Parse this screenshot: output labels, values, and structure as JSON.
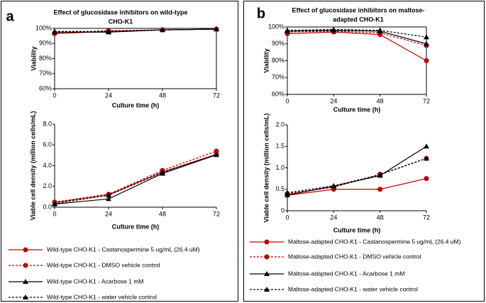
{
  "chart_data": [
    {
      "type": "line",
      "panel_label": "a",
      "title": [
        "Effect of glucosidase inhibitors on wild-type",
        "CHO-K1"
      ],
      "x_label": "Culture time (h)",
      "y_label": "Viability",
      "x": [
        0,
        24,
        48,
        72
      ],
      "xlim": [
        0,
        72
      ],
      "xticks": [
        0,
        24,
        48,
        72
      ],
      "ylim": [
        60,
        100
      ],
      "yticks": [
        {
          "value": 60,
          "label": "60%"
        },
        {
          "value": 70,
          "label": "70%"
        },
        {
          "value": 80,
          "label": "80%"
        },
        {
          "value": 90,
          "label": "90%"
        },
        {
          "value": 100,
          "label": "100%"
        }
      ],
      "box": true,
      "series": [
        {
          "color": "#c00000",
          "dash": false,
          "marker": "circle",
          "values": [
            96.5,
            98,
            99,
            99.5
          ]
        },
        {
          "color": "#c00000",
          "dash": true,
          "marker": "circle",
          "values": [
            97,
            98.5,
            99,
            99.5
          ]
        },
        {
          "color": "#000000",
          "dash": false,
          "marker": "triangle",
          "values": [
            97.5,
            97.5,
            99,
            99.5
          ]
        },
        {
          "color": "#000000",
          "dash": true,
          "marker": "triangle",
          "values": [
            98,
            98,
            99,
            99.5
          ]
        }
      ]
    },
    {
      "type": "line",
      "x_label": "Culture time (h)",
      "y_label": "Viable cell density (million cells/mL)",
      "x": [
        0,
        24,
        48,
        72
      ],
      "xlim": [
        0,
        72
      ],
      "xticks": [
        0,
        24,
        48,
        72
      ],
      "ylim": [
        0,
        8
      ],
      "yticks": [
        {
          "value": 0,
          "label": "0.0"
        },
        {
          "value": 2,
          "label": "2.0"
        },
        {
          "value": 4,
          "label": "4.0"
        },
        {
          "value": 6,
          "label": "6.0"
        },
        {
          "value": 8,
          "label": "8.0"
        }
      ],
      "box": false,
      "legend": true,
      "series": [
        {
          "name": "Wild-type CHO-K1 - Castanospermine 5 ug/mL (26.4 uM)",
          "color": "#c00000",
          "dash": false,
          "marker": "circle",
          "values": [
            0.45,
            1.2,
            3.4,
            5.1
          ]
        },
        {
          "name": "Wild-type CHO-K1 - DMSO vehicle control",
          "color": "#c00000",
          "dash": true,
          "marker": "circle",
          "values": [
            0.5,
            1.25,
            3.55,
            5.4
          ]
        },
        {
          "name": "Wild-type CHO-K1 - Acarbose 1 mM",
          "color": "#000000",
          "dash": false,
          "marker": "triangle",
          "values": [
            0.3,
            0.8,
            3.25,
            5.05
          ]
        },
        {
          "name": "Wild-type CHO-K1 - water vehicle control",
          "color": "#000000",
          "dash": true,
          "marker": "triangle",
          "values": [
            0.35,
            1.15,
            3.35,
            5.05
          ]
        }
      ]
    },
    {
      "type": "line",
      "panel_label": "b",
      "title": [
        "Effect of glucosidase inhibitors on maltose-",
        "adapted CHO-K1"
      ],
      "x_label": "Culture time (h)",
      "y_label": "Viability",
      "x": [
        0,
        24,
        48,
        72
      ],
      "xlim": [
        0,
        72
      ],
      "xticks": [
        0,
        24,
        48,
        72
      ],
      "ylim": [
        60,
        100
      ],
      "yticks": [
        {
          "value": 60,
          "label": "60%"
        },
        {
          "value": 70,
          "label": "70%"
        },
        {
          "value": 80,
          "label": "80%"
        },
        {
          "value": 90,
          "label": "90%"
        },
        {
          "value": 100,
          "label": "100%"
        }
      ],
      "box": true,
      "series": [
        {
          "color": "#c00000",
          "dash": false,
          "marker": "circle",
          "values": [
            96,
            97,
            95.5,
            80
          ]
        },
        {
          "color": "#c00000",
          "dash": true,
          "marker": "circle",
          "values": [
            97,
            97.5,
            96.5,
            89
          ]
        },
        {
          "color": "#000000",
          "dash": false,
          "marker": "triangle",
          "values": [
            97.5,
            98,
            97.5,
            90
          ]
        },
        {
          "color": "#000000",
          "dash": true,
          "marker": "triangle",
          "values": [
            98,
            98.5,
            98,
            94
          ]
        }
      ]
    },
    {
      "type": "line",
      "x_label": "Culture time (h)",
      "y_label": "Viable cell density (million cells/mL)",
      "x": [
        0,
        24,
        48,
        72
      ],
      "xlim": [
        0,
        72
      ],
      "xticks": [
        0,
        24,
        48,
        72
      ],
      "ylim": [
        0,
        2
      ],
      "yticks": [
        0,
        0.5,
        {
          "value": 1,
          "label": "1.0"
        },
        1.5,
        {
          "value": 2,
          "label": "2.0"
        }
      ],
      "box": false,
      "legend": true,
      "series": [
        {
          "name": "Maltose-adapted CHO-K1 - Castanospermine 5 ug/mL (26.4 uM)",
          "color": "#c00000",
          "dash": false,
          "marker": "circle",
          "values": [
            0.36,
            0.5,
            0.5,
            0.75
          ]
        },
        {
          "name": "Maltose-adapted CHO-K1 - DMSO vehicle control",
          "color": "#c00000",
          "dash": true,
          "marker": "circle",
          "values": [
            0.4,
            0.55,
            0.85,
            1.22
          ]
        },
        {
          "name": "Maltose-adapted CHO-K1 - Acarbose 1 mM",
          "color": "#000000",
          "dash": false,
          "marker": "triangle",
          "values": [
            0.37,
            0.57,
            0.82,
            1.5
          ]
        },
        {
          "name": "Maltose-adapted CHO-K1 - water vehicle control",
          "color": "#000000",
          "dash": true,
          "marker": "triangle",
          "values": [
            0.42,
            0.58,
            0.84,
            1.22
          ]
        }
      ]
    }
  ]
}
